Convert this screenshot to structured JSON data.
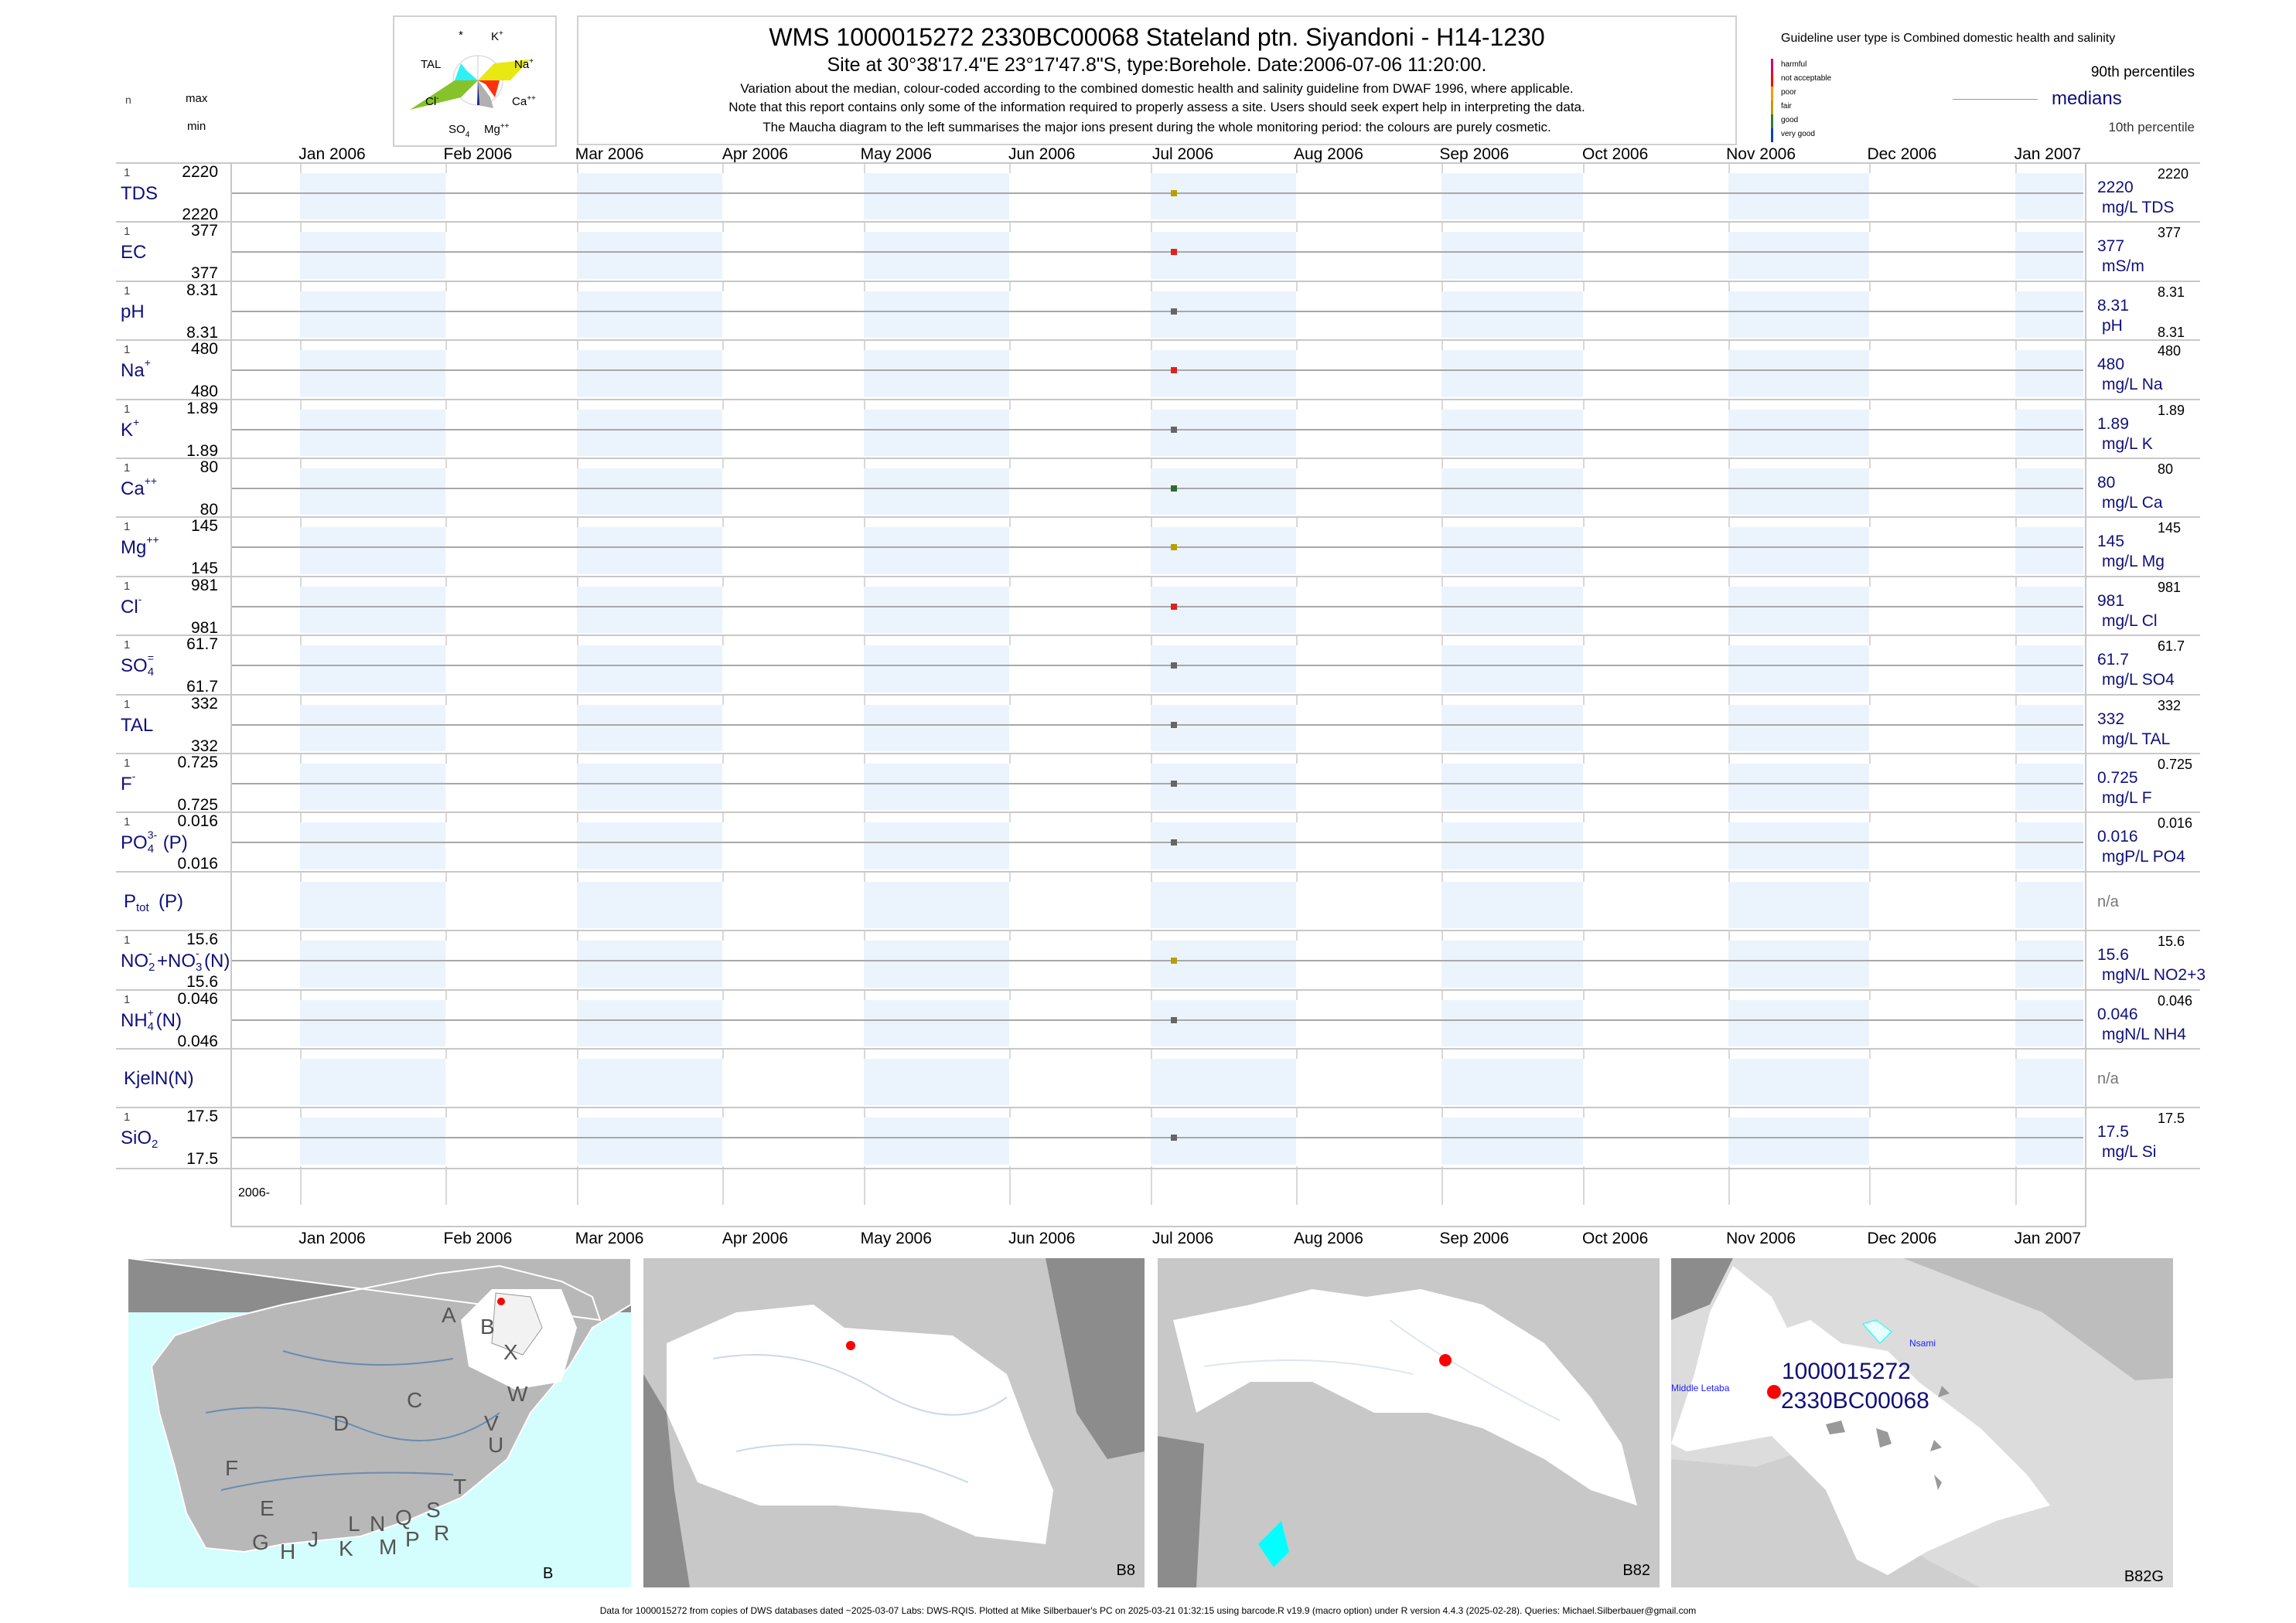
{
  "header": {
    "title": "WMS 1000015272 2330BC00068 Stateland ptn. Siyandoni - H14-1230",
    "subtitle": "Site at 30°38'17.4\"E 23°17'47.8\"S, type:Borehole. Date:2006-07-06 11:20:00.",
    "note1": "Variation about the median,  colour-coded according to the combined domestic health and salinity guideline from DWAF 1996, where applicable.",
    "note2": "Note that this report contains only some of the information required to properly assess a site. Users should seek expert help in interpreting the data.",
    "note3": "The Maucha diagram to the left summarises the major ions present during the whole monitoring period: the colours are purely cosmetic."
  },
  "left_header": {
    "n": "n",
    "max": "max",
    "min": "min"
  },
  "maucha": {
    "labels": {
      "star": "*",
      "k": "K",
      "k_sup": "+",
      "tal": "TAL",
      "na": "Na",
      "na_sup": "+",
      "cl": "Cl",
      "cl_sup": "-",
      "ca": "Ca",
      "ca_sup": "++",
      "so4": "SO",
      "so4_sub": "4",
      "so4_sup": "=",
      "mg": "Mg",
      "mg_sup": "++"
    },
    "colors": {
      "na": "#e8e812",
      "cl": "#86c22a",
      "tal": "#2ef0f5",
      "ca": "#ff3010",
      "mg": "#b0b0b0",
      "so4": "#1a237e"
    }
  },
  "legend": {
    "guideline": "Guideline user type is Combined domestic health and salinity",
    "classes": [
      {
        "label": "harmful",
        "color": "#d0006f"
      },
      {
        "label": "not acceptable",
        "color": "#ff0000"
      },
      {
        "label": "poor",
        "color": "#ff9900"
      },
      {
        "label": "fair",
        "color": "#b8a000"
      },
      {
        "label": "good",
        "color": "#2e7d32"
      },
      {
        "label": "very good",
        "color": "#1040c0"
      }
    ],
    "p90": "90th percentiles",
    "medians": "medians",
    "p10": "10th percentile"
  },
  "chart_data": {
    "type": "scatter",
    "title": "WMS 1000015272 2330BC00068 Stateland ptn. Siyandoni - H14-1230",
    "x_range": [
      "2006-01-01",
      "2007-01-01"
    ],
    "x_ticks": [
      "Jan 2006",
      "Feb 2006",
      "Mar 2006",
      "Apr 2006",
      "May 2006",
      "Jun 2006",
      "Jul 2006",
      "Aug 2006",
      "Sep 2006",
      "Oct 2006",
      "Nov 2006",
      "Dec 2006",
      "Jan 2007"
    ],
    "x_footer_label": "2006-",
    "sample_date": "2006-07-06",
    "rows": [
      {
        "id": "tds",
        "parts": [
          {
            "t": "TDS"
          }
        ],
        "n": "1",
        "max": "2220",
        "min": "2220",
        "median": "2220",
        "unit": "mg/L TDS",
        "p90": "2220",
        "p10": "",
        "value": 2220,
        "class": "fair"
      },
      {
        "id": "ec",
        "parts": [
          {
            "t": "EC"
          }
        ],
        "n": "1",
        "max": "377",
        "min": "377",
        "median": "377",
        "unit": "mS/m",
        "p90": "377",
        "p10": "",
        "value": 377,
        "class": "not acceptable"
      },
      {
        "id": "ph",
        "parts": [
          {
            "t": "pH"
          }
        ],
        "n": "1",
        "max": "8.31",
        "min": "8.31",
        "median": "8.31",
        "unit": "pH",
        "p90": "8.31",
        "p10": "8.31",
        "value": 8.31,
        "class": "none"
      },
      {
        "id": "na",
        "parts": [
          {
            "t": "Na"
          },
          {
            "sup": "+"
          }
        ],
        "n": "1",
        "max": "480",
        "min": "480",
        "median": "480",
        "unit": "mg/L Na",
        "p90": "480",
        "p10": "",
        "value": 480,
        "class": "not acceptable"
      },
      {
        "id": "k",
        "parts": [
          {
            "t": "K"
          },
          {
            "sup": "+"
          }
        ],
        "n": "1",
        "max": "1.89",
        "min": "1.89",
        "median": "1.89",
        "unit": "mg/L K",
        "p90": "1.89",
        "p10": "",
        "value": 1.89,
        "class": "none"
      },
      {
        "id": "ca",
        "parts": [
          {
            "t": "Ca"
          },
          {
            "sup": "++"
          }
        ],
        "n": "1",
        "max": "80",
        "min": "80",
        "median": "80",
        "unit": "mg/L Ca",
        "p90": "80",
        "p10": "",
        "value": 80,
        "class": "good"
      },
      {
        "id": "mg",
        "parts": [
          {
            "t": "Mg"
          },
          {
            "sup": "++"
          }
        ],
        "n": "1",
        "max": "145",
        "min": "145",
        "median": "145",
        "unit": "mg/L Mg",
        "p90": "145",
        "p10": "",
        "value": 145,
        "class": "fair"
      },
      {
        "id": "cl",
        "parts": [
          {
            "t": "Cl"
          },
          {
            "sup": "-"
          }
        ],
        "n": "1",
        "max": "981",
        "min": "981",
        "median": "981",
        "unit": "mg/L Cl",
        "p90": "981",
        "p10": "",
        "value": 981,
        "class": "not acceptable"
      },
      {
        "id": "so4",
        "parts": [
          {
            "t": "SO"
          },
          {
            "sub": "4",
            "sup": "="
          }
        ],
        "n": "1",
        "max": "61.7",
        "min": "61.7",
        "median": "61.7",
        "unit": "mg/L SO4",
        "p90": "61.7",
        "p10": "",
        "value": 61.7,
        "class": "none"
      },
      {
        "id": "tal",
        "parts": [
          {
            "t": "TAL"
          }
        ],
        "n": "1",
        "max": "332",
        "min": "332",
        "median": "332",
        "unit": "mg/L TAL",
        "p90": "332",
        "p10": "",
        "value": 332,
        "class": "none"
      },
      {
        "id": "f",
        "parts": [
          {
            "t": "F"
          },
          {
            "sup": "-"
          }
        ],
        "n": "1",
        "max": "0.725",
        "min": "0.725",
        "median": "0.725",
        "unit": "mg/L F",
        "p90": "0.725",
        "p10": "",
        "value": 0.725,
        "class": "none"
      },
      {
        "id": "po4",
        "parts": [
          {
            "t": "PO"
          },
          {
            "sub": "4",
            "sup": "3-"
          },
          {
            "t": "(P)"
          }
        ],
        "n": "1",
        "max": "0.016",
        "min": "0.016",
        "median": "0.016",
        "unit": "mgP/L PO4",
        "p90": "0.016",
        "p10": "",
        "value": 0.016,
        "class": "none"
      },
      {
        "id": "ptot",
        "parts": [
          {
            "t": "P"
          },
          {
            "sub": "tot"
          },
          {
            "t": "(P)"
          }
        ],
        "n": "",
        "max": "",
        "min": "",
        "median": "n/a",
        "unit": "",
        "p90": "",
        "p10": "",
        "value": null,
        "class": "none"
      },
      {
        "id": "no23",
        "parts": [
          {
            "t": "NO"
          },
          {
            "sub": "2",
            "sup": "-"
          },
          {
            "t": "+NO"
          },
          {
            "sub": "3",
            "sup": "-"
          },
          {
            "t": "(N)"
          }
        ],
        "n": "1",
        "max": "15.6",
        "min": "15.6",
        "median": "15.6",
        "unit": "mgN/L NO2+3",
        "p90": "15.6",
        "p10": "",
        "value": 15.6,
        "class": "fair"
      },
      {
        "id": "nh4",
        "parts": [
          {
            "t": "NH"
          },
          {
            "sub": "4",
            "sup": "+"
          },
          {
            "t": "(N)"
          }
        ],
        "n": "1",
        "max": "0.046",
        "min": "0.046",
        "median": "0.046",
        "unit": "mgN/L NH4",
        "p90": "0.046",
        "p10": "",
        "value": 0.046,
        "class": "none"
      },
      {
        "id": "kjeln",
        "parts": [
          {
            "t": "KjelN(N)"
          }
        ],
        "n": "",
        "max": "",
        "min": "",
        "median": "n/a",
        "unit": "",
        "p90": "",
        "p10": "",
        "value": null,
        "class": "none"
      },
      {
        "id": "sio2",
        "parts": [
          {
            "t": "SiO"
          },
          {
            "sub": "2"
          }
        ],
        "n": "1",
        "max": "17.5",
        "min": "17.5",
        "median": "17.5",
        "unit": "mg/L Si",
        "p90": "17.5",
        "p10": "",
        "value": 17.5,
        "class": "none"
      }
    ]
  },
  "class_colors": {
    "fair": "#b8a000",
    "not acceptable": "#e02020",
    "good": "#2e6b2e",
    "none": "#666666"
  },
  "maps": {
    "m1": {
      "label": "B",
      "regions": [
        "A",
        "B",
        "X",
        "C",
        "W",
        "V",
        "U",
        "D",
        "T",
        "F",
        "E",
        "S",
        "R",
        "Q",
        "N",
        "L",
        "P",
        "M",
        "K",
        "J",
        "H",
        "G"
      ]
    },
    "m2": {
      "label": "B8"
    },
    "m3": {
      "label": "B82"
    },
    "m4": {
      "label": "B82G",
      "site_id": "1000015272",
      "site_code": "2330BC00068",
      "dam1": "Nsami",
      "dam2": "Middle Letaba"
    }
  },
  "footer": "Data for 1000015272 from copies of DWS databases dated ~2025-03-07 Labs: DWS-RQIS. Plotted at Mike Silberbauer's PC on 2025-03-21 01:32:15 using barcode.R v19.9 (macro option) under R version 4.4.3 (2025-02-28). Queries: Michael.Silberbauer@gmail.com"
}
